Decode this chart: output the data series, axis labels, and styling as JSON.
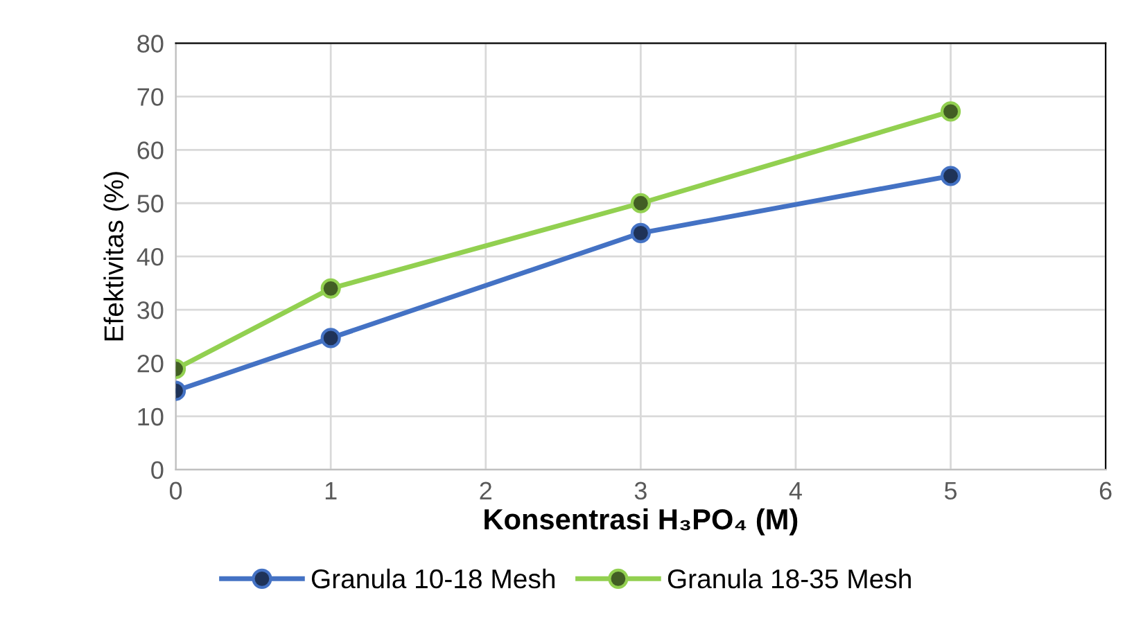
{
  "chart_data": {
    "type": "line",
    "xlabel": "Konsentrasi H₃PO₄ (M)",
    "ylabel": "Efektivitas (%)",
    "x": [
      0,
      1,
      3,
      5
    ],
    "series": [
      {
        "name": "Granula 10-18 Mesh",
        "color": "#4472c4",
        "values": [
          14.8,
          24.7,
          44.4,
          55.1
        ]
      },
      {
        "name": "Granula 18-35 Mesh",
        "color": "#92d050",
        "values": [
          18.9,
          34.0,
          50.0,
          67.2
        ]
      }
    ],
    "xlim": [
      0,
      6
    ],
    "xticks": [
      0,
      1,
      2,
      3,
      4,
      5,
      6
    ],
    "ylim": [
      0,
      80
    ],
    "yticks": [
      0,
      10,
      20,
      30,
      40,
      50,
      60,
      70,
      80
    ],
    "grid": true,
    "legend": "bottom",
    "marker": "circle",
    "line_style": "solid"
  }
}
